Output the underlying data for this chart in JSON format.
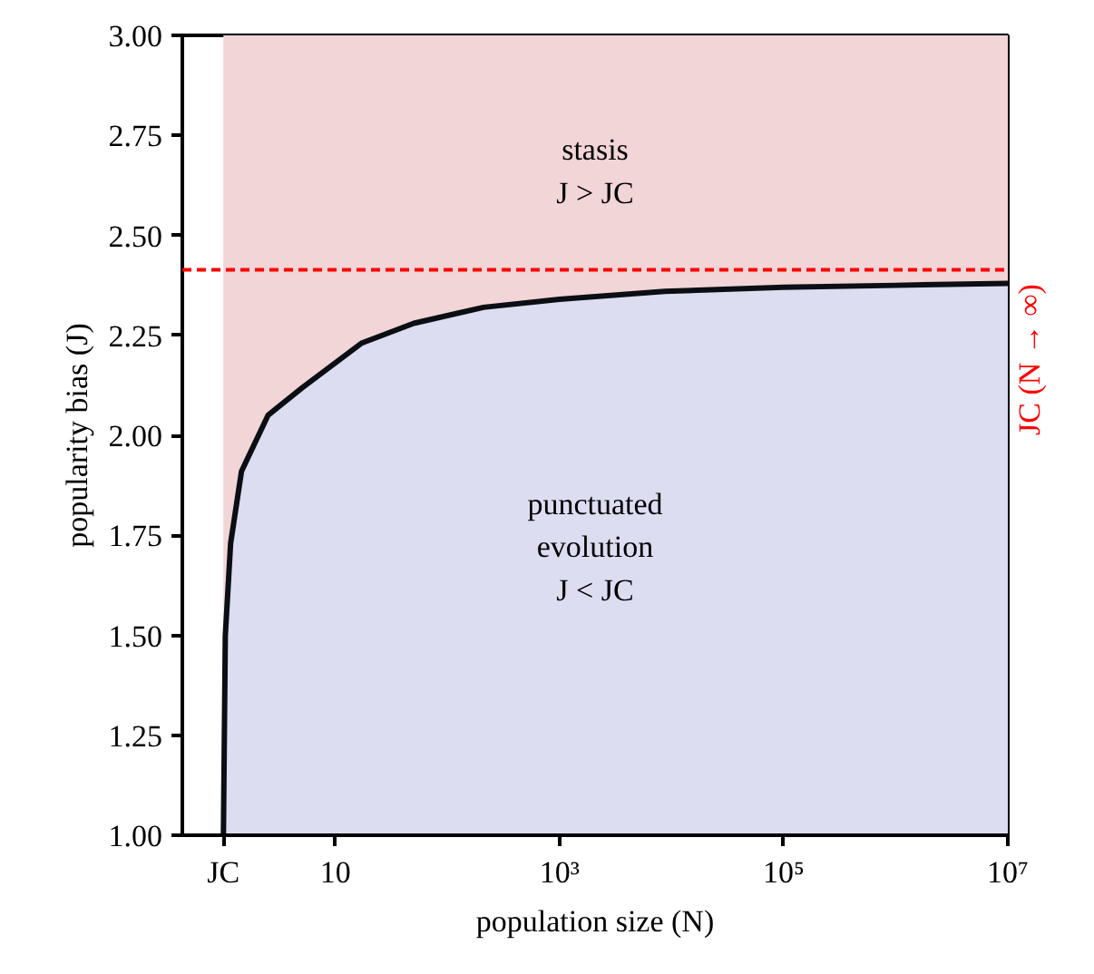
{
  "chart_data": {
    "type": "area",
    "xlabel": "population size (N)",
    "ylabel": "popularity bias (J)",
    "log": "x",
    "xlim": [
      0.43,
      10000000
    ],
    "ylim": [
      1,
      3
    ],
    "xticks": [
      {
        "value": 10,
        "label": "10"
      },
      {
        "value": 1000,
        "label": "10³"
      },
      {
        "value": 100000,
        "label": "10⁵"
      },
      {
        "value": 10000000,
        "label": "10⁷"
      }
    ],
    "yticks": [
      {
        "value": 1,
        "label": "1.00"
      },
      {
        "value": 1.25,
        "label": "1.25"
      },
      {
        "value": 1.5,
        "label": "1.50"
      },
      {
        "value": 1.75,
        "label": "1.75"
      },
      {
        "value": 2,
        "label": "2.00"
      },
      {
        "value": 2.25,
        "label": "2.25"
      },
      {
        "value": 2.5,
        "label": "2.50"
      },
      {
        "value": 2.75,
        "label": "2.75"
      },
      {
        "value": 3,
        "label": "3.00"
      }
    ],
    "series": [
      {
        "color": "#dcddf1",
        "x": [
          1,
          1.04,
          1.16,
          1.45,
          2.5,
          5.1,
          17,
          50,
          210,
          1000,
          8700,
          100000,
          1000000,
          10000000
        ],
        "values": [
          1.0,
          1.5,
          1.73,
          1.91,
          2.05,
          2.12,
          2.23,
          2.28,
          2.32,
          2.34,
          2.36,
          2.37,
          2.375,
          2.38
        ]
      }
    ],
    "bands": [
      {
        "axis": "x",
        "from": 1,
        "to": 10000000,
        "color": "#f2d5d6"
      }
    ],
    "ref_lines": [
      {
        "axis": "y",
        "value": 2.414,
        "label": "JC (N → ∞)",
        "color": "#ff0000",
        "line_style": "dashed"
      }
    ],
    "annotations": [
      "stasis\nJ > JC",
      "punctuated\nevolution\nJ < JC",
      "JC"
    ],
    "grid": false
  }
}
